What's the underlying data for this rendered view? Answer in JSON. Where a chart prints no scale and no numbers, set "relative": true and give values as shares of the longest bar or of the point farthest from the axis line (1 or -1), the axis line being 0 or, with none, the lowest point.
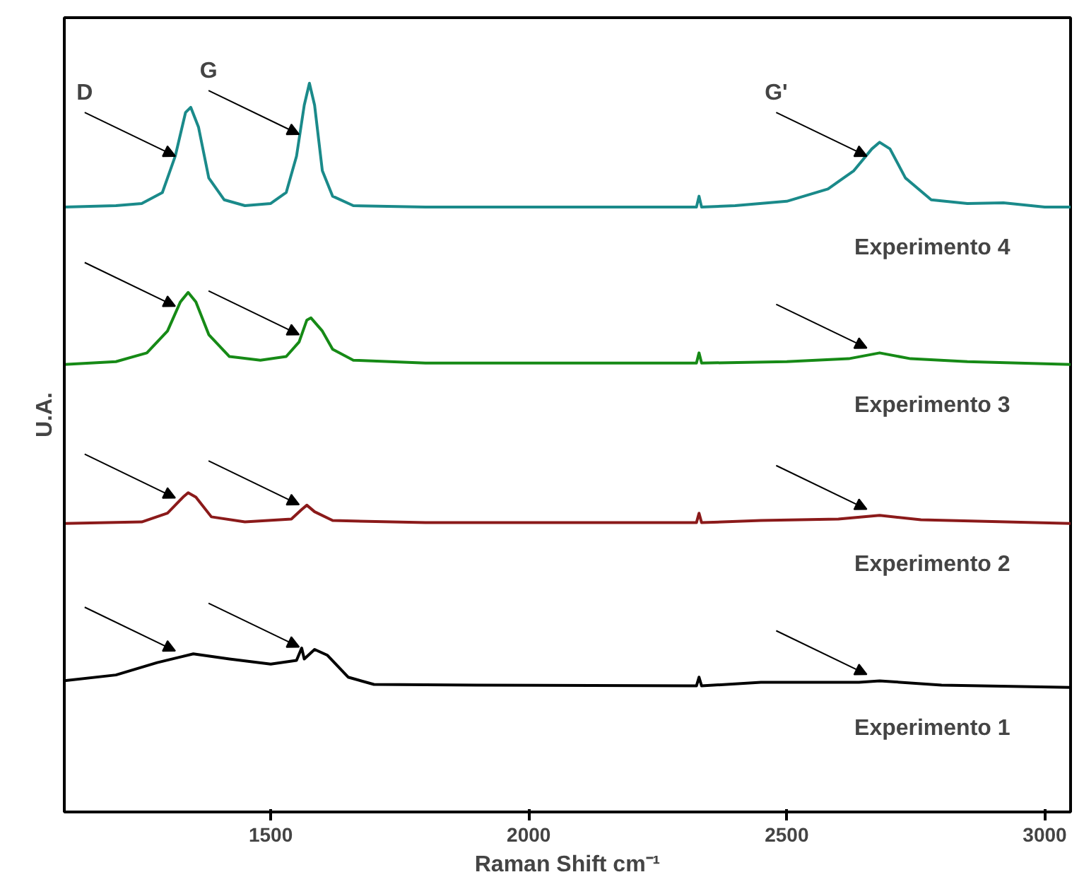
{
  "chart_data": {
    "type": "line",
    "relative": true,
    "xlabel": "Raman Shift cm⁻¹",
    "ylabel": "U.A.",
    "xlim": [
      1100,
      3050
    ],
    "xticks": [
      1500,
      2000,
      2500,
      3000
    ],
    "grid": false,
    "legend": false,
    "annotations": [
      {
        "text": "D",
        "x": 1315,
        "y": 0.9
      },
      {
        "text": "G",
        "x": 1555,
        "y": 0.93
      },
      {
        "text": "G'",
        "x": 2655,
        "y": 0.9
      }
    ],
    "series": [
      {
        "name": "Experimento 4",
        "color": "#1a8a8a",
        "x": [
          1100,
          1200,
          1250,
          1290,
          1315,
          1335,
          1345,
          1360,
          1380,
          1410,
          1450,
          1500,
          1530,
          1550,
          1565,
          1575,
          1585,
          1600,
          1620,
          1660,
          1800,
          2000,
          2300,
          2325,
          2330,
          2335,
          2400,
          2500,
          2580,
          2630,
          2665,
          2680,
          2700,
          2730,
          2780,
          2850,
          2920,
          3000,
          3050
        ],
        "values": [
          0.83,
          0.832,
          0.835,
          0.85,
          0.9,
          0.96,
          0.967,
          0.94,
          0.87,
          0.84,
          0.832,
          0.835,
          0.85,
          0.9,
          0.97,
          1.0,
          0.97,
          0.88,
          0.845,
          0.832,
          0.83,
          0.83,
          0.83,
          0.83,
          0.845,
          0.83,
          0.832,
          0.838,
          0.855,
          0.88,
          0.91,
          0.919,
          0.91,
          0.87,
          0.84,
          0.835,
          0.836,
          0.83,
          0.83
        ]
      },
      {
        "name": "Experimento 3",
        "color": "#168a16",
        "x": [
          1100,
          1200,
          1260,
          1300,
          1325,
          1340,
          1355,
          1380,
          1420,
          1480,
          1530,
          1555,
          1570,
          1578,
          1600,
          1620,
          1660,
          1800,
          2000,
          2325,
          2330,
          2335,
          2500,
          2620,
          2680,
          2740,
          2850,
          3050
        ],
        "values": [
          0.614,
          0.618,
          0.63,
          0.66,
          0.7,
          0.713,
          0.7,
          0.655,
          0.625,
          0.62,
          0.625,
          0.645,
          0.675,
          0.678,
          0.66,
          0.635,
          0.62,
          0.616,
          0.616,
          0.616,
          0.63,
          0.616,
          0.618,
          0.622,
          0.63,
          0.622,
          0.618,
          0.614
        ]
      },
      {
        "name": "Experimento 2",
        "color": "#8b1a1a",
        "x": [
          1100,
          1250,
          1300,
          1330,
          1340,
          1355,
          1385,
          1450,
          1540,
          1560,
          1570,
          1585,
          1620,
          1800,
          2325,
          2330,
          2335,
          2450,
          2600,
          2680,
          2760,
          3050
        ],
        "values": [
          0.396,
          0.398,
          0.41,
          0.432,
          0.438,
          0.432,
          0.405,
          0.398,
          0.402,
          0.415,
          0.421,
          0.412,
          0.4,
          0.397,
          0.397,
          0.41,
          0.397,
          0.4,
          0.402,
          0.407,
          0.401,
          0.396
        ]
      },
      {
        "name": "Experimento 1",
        "color": "#000000",
        "x": [
          1100,
          1200,
          1280,
          1350,
          1420,
          1500,
          1550,
          1560,
          1565,
          1585,
          1610,
          1650,
          1700,
          1900,
          2325,
          2330,
          2335,
          2450,
          2640,
          2680,
          2800,
          3050
        ],
        "values": [
          0.18,
          0.188,
          0.205,
          0.217,
          0.21,
          0.203,
          0.208,
          0.225,
          0.21,
          0.223,
          0.215,
          0.185,
          0.175,
          0.174,
          0.173,
          0.185,
          0.173,
          0.178,
          0.178,
          0.18,
          0.174,
          0.171
        ]
      }
    ]
  }
}
